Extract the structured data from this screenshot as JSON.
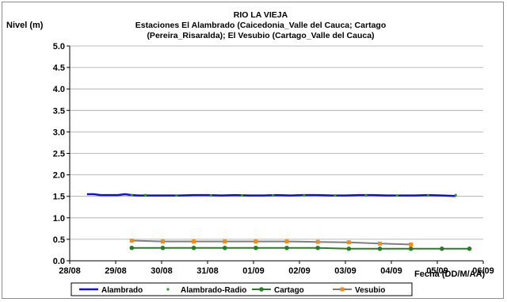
{
  "chart_data": {
    "type": "line",
    "title": "RIO LA VIEJA",
    "subtitle_lines": [
      "Estaciones El Alambrado (Caicedonia_Valle del Cauca; Cartago",
      "(Pereira_Risaralda);  El Vesubio (Cartago_Valle del Cauca)"
    ],
    "ylabel": "Nivel (m)",
    "xlabel": "Fecha (DD/M/AA)",
    "ylim": [
      0,
      5.0
    ],
    "y_ticks": [
      "0.0",
      "0.5",
      "1.0",
      "1.5",
      "2.0",
      "2.5",
      "3.0",
      "3.5",
      "4.0",
      "4.5",
      "5.0"
    ],
    "x_range_days": [
      0,
      12
    ],
    "x_ticks": [
      "28/08",
      "29/08",
      "30/08",
      "31/08",
      "01/09",
      "02/09",
      "03/09",
      "04/09",
      "05/09",
      "06/09"
    ],
    "x_tick_days": [
      0,
      1.3333,
      2.6667,
      4.0,
      5.3333,
      6.6667,
      8.0,
      9.3333,
      10.6667,
      12.0
    ],
    "legend_position": "bottom",
    "grid": "horizontal",
    "series": [
      {
        "name": "Alambrado",
        "color": "#1010e0",
        "style": "line",
        "x": [
          0.5,
          0.7,
          0.9,
          1.2,
          1.4,
          1.6,
          1.8,
          2.0,
          2.4,
          2.8,
          3.2,
          3.6,
          4.0,
          4.4,
          4.8,
          5.2,
          5.6,
          6.0,
          6.4,
          6.8,
          7.2,
          7.6,
          8.0,
          8.4,
          8.8,
          9.2,
          9.6,
          10.0,
          10.4,
          10.8,
          11.2
        ],
        "y": [
          1.55,
          1.55,
          1.53,
          1.53,
          1.53,
          1.55,
          1.53,
          1.52,
          1.52,
          1.52,
          1.52,
          1.53,
          1.53,
          1.52,
          1.53,
          1.52,
          1.52,
          1.53,
          1.52,
          1.53,
          1.53,
          1.52,
          1.52,
          1.53,
          1.53,
          1.52,
          1.52,
          1.52,
          1.53,
          1.52,
          1.51
        ]
      },
      {
        "name": "Alambrado-Radio",
        "color": "#22a022",
        "style": "dots",
        "x": [
          1.8,
          2.2,
          3.1,
          4.1,
          5.0,
          5.9,
          6.8,
          7.7,
          8.6,
          9.5,
          10.4,
          11.2
        ],
        "y": [
          1.53,
          1.53,
          1.52,
          1.52,
          1.52,
          1.52,
          1.52,
          1.52,
          1.52,
          1.52,
          1.52,
          1.53
        ]
      },
      {
        "name": "Cartago",
        "color": "#2a7a2a",
        "style": "line-markers",
        "x": [
          1.8,
          2.7,
          3.6,
          4.5,
          5.4,
          6.3,
          7.2,
          8.1,
          9.0,
          9.9,
          10.8,
          11.6
        ],
        "y": [
          0.3,
          0.3,
          0.3,
          0.3,
          0.3,
          0.3,
          0.3,
          0.28,
          0.28,
          0.28,
          0.28,
          0.28
        ]
      },
      {
        "name": "Vesubio",
        "color": "#f08c1a",
        "line_color": "#7f7f7f",
        "style": "line-markers",
        "x": [
          1.8,
          2.7,
          3.6,
          4.5,
          5.4,
          6.3,
          7.2,
          8.1,
          9.0,
          9.9
        ],
        "y": [
          0.47,
          0.45,
          0.45,
          0.45,
          0.45,
          0.45,
          0.44,
          0.43,
          0.4,
          0.38
        ]
      }
    ]
  }
}
